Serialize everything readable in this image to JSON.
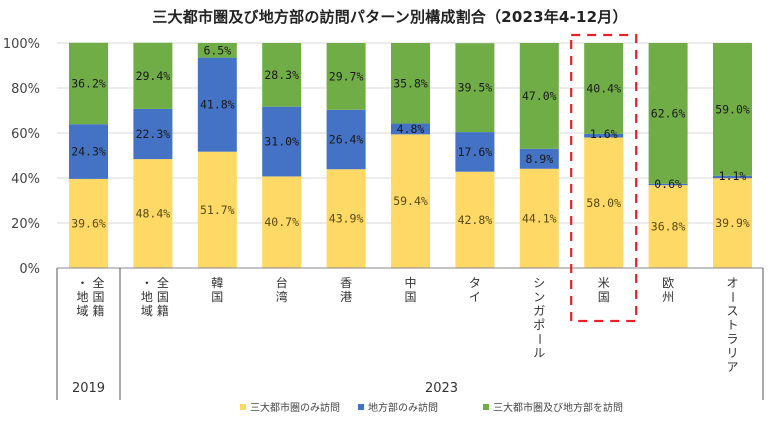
{
  "chart_data": {
    "type": "bar",
    "stacked": true,
    "percent": true,
    "title": "三大都市圏及び地方部の訪問パターン別構成割合（2023年4-12月）",
    "xlabel": "",
    "ylabel": "",
    "ylim": [
      0,
      100
    ],
    "yticks": [
      "0%",
      "20%",
      "40%",
      "60%",
      "80%",
      "100%"
    ],
    "grid": true,
    "legend_position": "bottom",
    "categories": [
      {
        "label": "全国籍・地域",
        "label_cols": [
          "全国籍",
          "・地域"
        ],
        "group": "2019"
      },
      {
        "label": "全国籍・地域",
        "label_cols": [
          "全国籍",
          "・地域"
        ],
        "group": "2023"
      },
      {
        "label": "韓国",
        "label_cols": [
          "韓国"
        ],
        "group": "2023"
      },
      {
        "label": "台湾",
        "label_cols": [
          "台湾"
        ],
        "group": "2023"
      },
      {
        "label": "香港",
        "label_cols": [
          "香港"
        ],
        "group": "2023"
      },
      {
        "label": "中国",
        "label_cols": [
          "中国"
        ],
        "group": "2023"
      },
      {
        "label": "タイ",
        "label_cols": [
          "タイ"
        ],
        "group": "2023"
      },
      {
        "label": "シンガポール",
        "label_cols": [
          "シンガポール"
        ],
        "group": "2023"
      },
      {
        "label": "米国",
        "label_cols": [
          "米国"
        ],
        "group": "2023",
        "highlighted": true
      },
      {
        "label": "欧州",
        "label_cols": [
          "欧州"
        ],
        "group": "2023"
      },
      {
        "label": "オーストラリア",
        "label_cols": [
          "オーストラリア"
        ],
        "group": "2023"
      }
    ],
    "groups": [
      "2019",
      "2023"
    ],
    "series": [
      {
        "name": "三大都市圏のみ訪問",
        "color": "#FFD966",
        "values": [
          39.6,
          48.4,
          51.7,
          40.7,
          43.9,
          59.4,
          42.8,
          44.1,
          58.0,
          36.8,
          39.9
        ],
        "labels": [
          "39.6%",
          "48.4%",
          "51.7%",
          "40.7%",
          "43.9%",
          "59.4%",
          "42.8%",
          "44.1%",
          "58.0%",
          "36.8%",
          "39.9%"
        ]
      },
      {
        "name": "地方部のみ訪問",
        "color": "#4472C4",
        "values": [
          24.3,
          22.3,
          41.8,
          31.0,
          26.4,
          4.8,
          17.6,
          8.9,
          1.6,
          0.6,
          1.1
        ],
        "labels": [
          "24.3%",
          "22.3%",
          "41.8%",
          "31.0%",
          "26.4%",
          "4.8%",
          "17.6%",
          "8.9%",
          "1.6%",
          "0.6%",
          "1.1%"
        ]
      },
      {
        "name": "三大都市圏及び地方部を訪問",
        "color": "#70AD47",
        "values": [
          36.2,
          29.4,
          6.5,
          28.3,
          29.7,
          35.8,
          39.5,
          47.0,
          40.4,
          62.6,
          59.0
        ],
        "labels": [
          "36.2%",
          "29.4%",
          "6.5%",
          "28.3%",
          "29.7%",
          "35.8%",
          "39.5%",
          "47.0%",
          "40.4%",
          "62.6%",
          "59.0%"
        ]
      }
    ],
    "highlight_color": "#E8202A"
  }
}
